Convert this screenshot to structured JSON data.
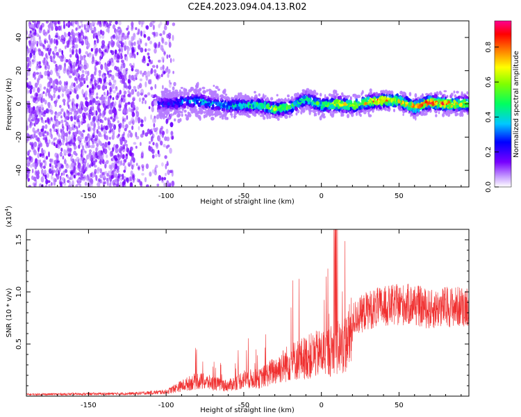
{
  "title": "C2E4.2023.094.04.13.R02",
  "chart_data": [
    {
      "type": "heatmap",
      "xlabel": "Height of straight line (km)",
      "ylabel": "Frequency (Hz)",
      "xlim": [
        -190,
        95
      ],
      "ylim": [
        -50,
        50
      ],
      "x_ticks": [
        -150,
        -100,
        -50,
        0,
        50
      ],
      "y_ticks": [
        -40,
        -20,
        0,
        20,
        40
      ],
      "colorbar": {
        "label": "Normalized spectral amplitude",
        "range": [
          0.0,
          0.95
        ],
        "ticks": [
          0.0,
          0.2,
          0.4,
          0.6,
          0.8
        ],
        "tick_labels": [
          "0.0",
          "0.2",
          "0.4",
          "0.6",
          "0.8"
        ],
        "colormap": "rainbow"
      },
      "ridge": {
        "x": [
          -100,
          -90,
          -80,
          -70,
          -60,
          -50,
          -40,
          -30,
          -20,
          -10,
          0,
          10,
          20,
          30,
          40,
          50,
          60,
          70,
          80,
          90
        ],
        "frequency": [
          0,
          1,
          2,
          0,
          -1,
          -1,
          -1,
          -3,
          -2,
          3,
          -1,
          0,
          -1,
          1,
          2,
          2,
          -2,
          1,
          0,
          0
        ],
        "amplitude": [
          0.3,
          0.35,
          0.45,
          0.4,
          0.45,
          0.5,
          0.55,
          0.7,
          0.55,
          0.55,
          0.6,
          0.8,
          0.7,
          0.85,
          0.9,
          0.8,
          0.85,
          0.95,
          0.9,
          0.8
        ]
      }
    },
    {
      "type": "line",
      "xlabel": "Height of straight line (km)",
      "ylabel": "SNR (10 * v/v)",
      "exponent_label": "(x10",
      "exponent_power": "4",
      "exponent_close": ")",
      "xlim": [
        -190,
        95
      ],
      "ylim": [
        0,
        1.6
      ],
      "x_ticks": [
        -150,
        -100,
        -50,
        0,
        50
      ],
      "y_ticks": [
        0.5,
        1.0,
        1.5
      ],
      "y_tick_labels": [
        "0.5",
        "1.0",
        "1.5"
      ],
      "series_color": "#f03030",
      "envelope": {
        "x": [
          -190,
          -120,
          -100,
          -90,
          -80,
          -70,
          -60,
          -50,
          -40,
          -30,
          -20,
          -10,
          0,
          10,
          15,
          20,
          30,
          40,
          50,
          60,
          70,
          80,
          90,
          95
        ],
        "y": [
          0.02,
          0.03,
          0.05,
          0.12,
          0.18,
          0.15,
          0.12,
          0.2,
          0.2,
          0.3,
          0.4,
          0.45,
          0.5,
          0.55,
          0.6,
          0.75,
          0.85,
          0.88,
          0.9,
          0.9,
          0.85,
          0.88,
          0.88,
          0.9
        ]
      }
    }
  ]
}
